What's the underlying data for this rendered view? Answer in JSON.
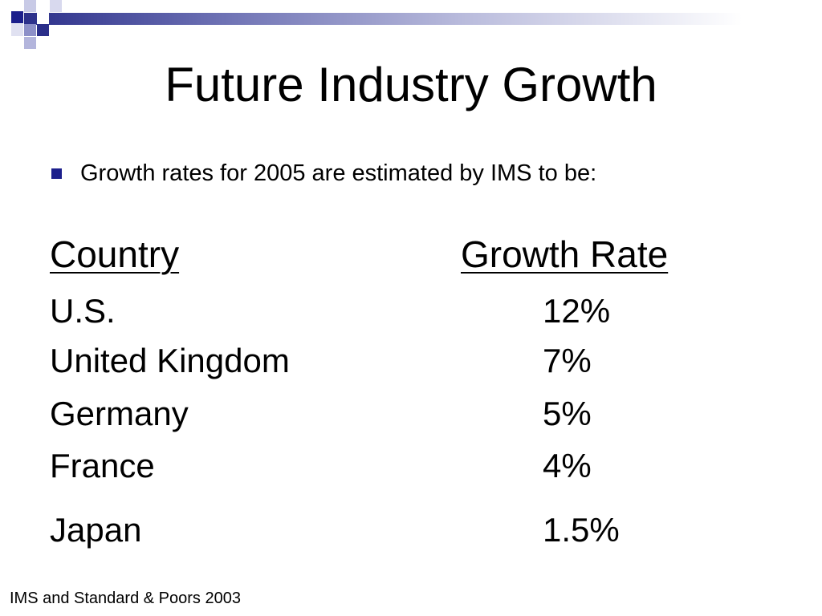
{
  "slide": {
    "title": "Future Industry Growth",
    "bullet": "Growth rates for 2005 are estimated by IMS to be:",
    "table": {
      "headers": {
        "country": "Country",
        "rate": "Growth Rate"
      },
      "rows": [
        {
          "country": "U.S.",
          "rate": "12%"
        },
        {
          "country": "United Kingdom",
          "rate": "7%"
        },
        {
          "country": "Germany",
          "rate": "5%"
        },
        {
          "country": "France",
          "rate": "4%"
        },
        {
          "country": "Japan",
          "rate": "1.5%"
        }
      ]
    },
    "footer": "IMS and Standard & Poors 2003"
  },
  "colors": {
    "accent_dark": "#1c1f8c",
    "accent_mid": "#6e72b4",
    "accent_light": "#b9bbdc"
  }
}
